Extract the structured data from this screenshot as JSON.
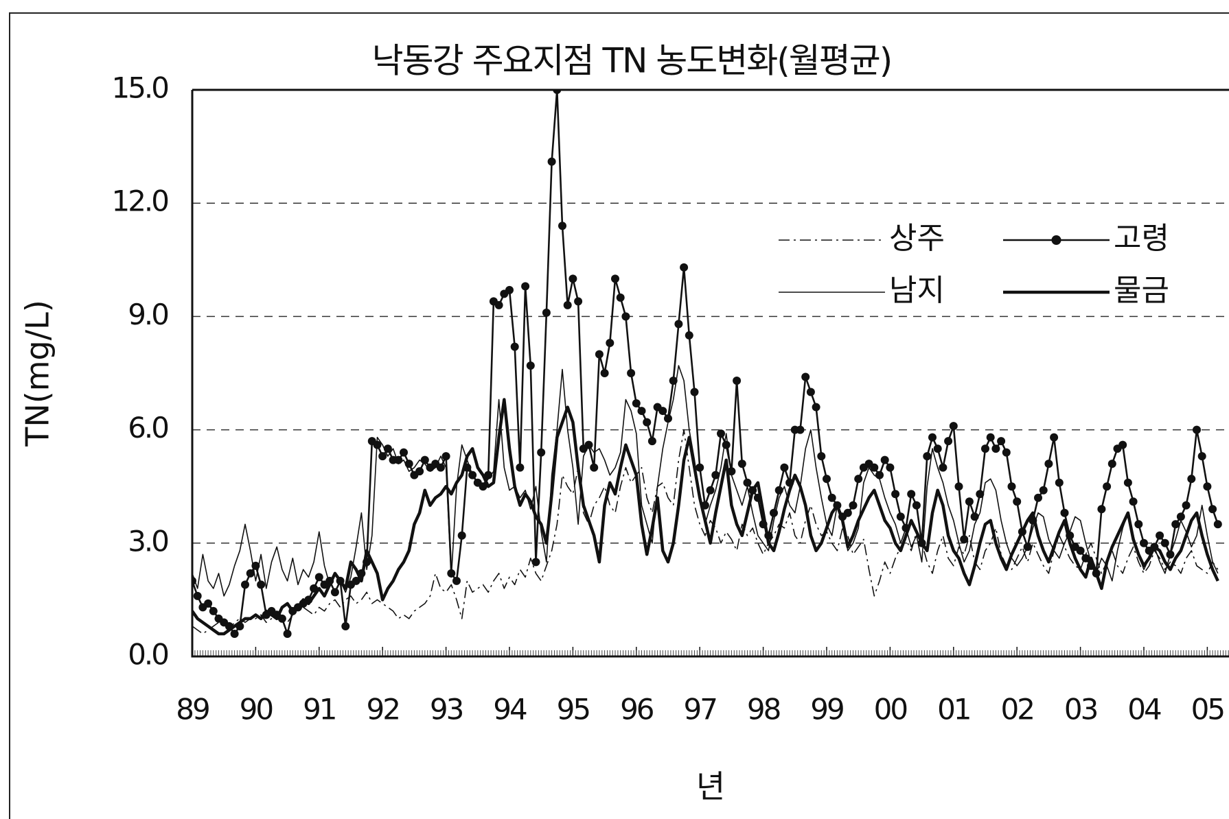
{
  "chart_data": {
    "type": "line",
    "title": "낙동강 주요지점 TN 농도변화(월평균)",
    "y_label": "TN(mg/L)",
    "x_label": "년",
    "x": [
      0,
      1,
      2,
      3,
      4,
      5,
      6,
      7,
      8,
      9,
      10,
      11,
      12,
      13,
      14,
      15,
      16,
      17,
      18,
      19,
      20,
      21,
      22,
      23,
      24,
      25,
      26,
      27,
      28,
      29,
      30,
      31,
      32,
      33,
      34,
      35,
      36,
      37,
      38,
      39,
      40,
      41,
      42,
      43,
      44,
      45,
      46,
      47,
      48,
      49,
      50,
      51,
      52,
      53,
      54,
      55,
      56,
      57,
      58,
      59,
      60,
      61,
      62,
      63,
      64,
      65,
      66,
      67,
      68,
      69,
      70,
      71,
      72,
      73,
      74,
      75,
      76,
      77,
      78,
      79,
      80,
      81,
      82,
      83,
      84,
      85,
      86,
      87,
      88,
      89,
      90,
      91,
      92,
      93,
      94,
      95,
      96,
      97,
      98,
      99,
      100,
      101,
      102,
      103,
      104,
      105,
      106,
      107,
      108,
      109,
      110,
      111,
      112,
      113,
      114,
      115,
      116,
      117,
      118,
      119,
      120,
      121,
      122,
      123,
      124,
      125,
      126,
      127,
      128,
      129,
      130,
      131,
      132,
      133,
      134,
      135,
      136,
      137,
      138,
      139,
      140,
      141,
      142,
      143,
      144,
      145,
      146,
      147,
      148,
      149,
      150,
      151,
      152,
      153,
      154,
      155,
      156,
      157,
      158,
      159,
      160,
      161,
      162,
      163,
      164,
      165,
      166,
      167,
      168,
      169,
      170,
      171,
      172,
      173,
      174,
      175,
      176,
      177,
      178,
      179,
      180,
      181,
      182,
      183,
      184,
      185,
      186,
      187,
      188,
      189,
      190,
      191,
      192,
      193,
      194
    ],
    "xlim": [
      0,
      197
    ],
    "xticks": [
      {
        "value": 0,
        "label": "89"
      },
      {
        "value": 12,
        "label": "90"
      },
      {
        "value": 24,
        "label": "91"
      },
      {
        "value": 36,
        "label": "92"
      },
      {
        "value": 48,
        "label": "93"
      },
      {
        "value": 60,
        "label": "94"
      },
      {
        "value": 72,
        "label": "95"
      },
      {
        "value": 84,
        "label": "96"
      },
      {
        "value": 96,
        "label": "97"
      },
      {
        "value": 108,
        "label": "98"
      },
      {
        "value": 120,
        "label": "99"
      },
      {
        "value": 132,
        "label": "00"
      },
      {
        "value": 144,
        "label": "01"
      },
      {
        "value": 156,
        "label": "02"
      },
      {
        "value": 168,
        "label": "03"
      },
      {
        "value": 180,
        "label": "04"
      },
      {
        "value": 192,
        "label": "05"
      }
    ],
    "ylim": [
      0,
      15
    ],
    "yticks": [
      {
        "value": 0,
        "label": "0.0"
      },
      {
        "value": 3,
        "label": "3.0"
      },
      {
        "value": 6,
        "label": "6.0"
      },
      {
        "value": 9,
        "label": "9.0"
      },
      {
        "value": 12,
        "label": "12.0"
      },
      {
        "value": 15,
        "label": "15.0"
      }
    ],
    "grid": true,
    "legend": "upper right",
    "series": [
      {
        "name": "상주",
        "color": "#111111",
        "style": "dashdot",
        "width": 1.6,
        "markers": false,
        "values": [
          0.8,
          0.7,
          0.6,
          0.7,
          0.8,
          0.9,
          0.8,
          0.7,
          0.9,
          1.0,
          0.9,
          1.0,
          1.0,
          1.1,
          0.9,
          1.0,
          1.2,
          1.0,
          0.9,
          1.1,
          1.2,
          1.3,
          1.2,
          1.1,
          1.3,
          1.2,
          1.4,
          1.5,
          1.3,
          1.5,
          1.6,
          1.4,
          1.5,
          1.7,
          1.4,
          1.5,
          1.4,
          1.3,
          1.2,
          1.0,
          1.1,
          1.0,
          1.2,
          1.3,
          1.4,
          1.6,
          2.2,
          1.8,
          1.7,
          1.9,
          1.5,
          1.0,
          2.0,
          1.7,
          1.8,
          1.9,
          1.7,
          2.0,
          2.2,
          1.8,
          2.1,
          1.9,
          2.3,
          2.1,
          2.6,
          2.2,
          2.0,
          2.4,
          2.8,
          3.5,
          4.8,
          4.5,
          4.3,
          5.0,
          3.8,
          3.5,
          4.0,
          4.2,
          4.5,
          4.0,
          3.8,
          4.5,
          5.0,
          4.6,
          4.8,
          5.0,
          4.2,
          3.8,
          4.5,
          4.6,
          4.2,
          4.0,
          5.2,
          6.0,
          5.0,
          4.0,
          3.5,
          3.2,
          3.6,
          3.4,
          3.0,
          3.3,
          3.1,
          2.8,
          3.5,
          3.2,
          3.4,
          3.0,
          2.7,
          3.0,
          3.2,
          3.5,
          3.4,
          3.8,
          3.2,
          3.0,
          3.6,
          4.0,
          3.5,
          3.2,
          3.3,
          3.0,
          2.8,
          3.4,
          3.2,
          2.7,
          2.9,
          3.1,
          2.3,
          1.6,
          2.0,
          2.5,
          2.2,
          2.6,
          2.9,
          3.1,
          2.8,
          3.3,
          3.0,
          2.5,
          2.2,
          2.8,
          3.2,
          2.6,
          2.4,
          2.9,
          2.7,
          3.2,
          2.5,
          2.3,
          2.8,
          3.0,
          3.4,
          2.7,
          2.4,
          2.3,
          2.6,
          2.9,
          2.5,
          3.0,
          2.7,
          2.4,
          2.2,
          2.8,
          3.2,
          2.9,
          2.6,
          2.4,
          2.3,
          2.7,
          3.0,
          2.6,
          2.2,
          2.5,
          2.8,
          2.4,
          2.2,
          2.6,
          2.9,
          2.5,
          2.2,
          2.4,
          2.8,
          2.6,
          2.3,
          2.5,
          2.4,
          2.2,
          2.6,
          2.8,
          2.4,
          2.3,
          2.2,
          2.5,
          2.3
        ]
      },
      {
        "name": "고령",
        "color": "#111111",
        "style": "solid",
        "width": 2.6,
        "markers": true,
        "values": [
          2.0,
          1.6,
          1.3,
          1.4,
          1.2,
          1.0,
          0.9,
          0.8,
          0.6,
          0.8,
          1.9,
          2.2,
          2.4,
          1.9,
          1.1,
          1.2,
          1.1,
          1.0,
          0.6,
          1.2,
          1.3,
          1.4,
          1.5,
          1.8,
          2.1,
          1.9,
          2.0,
          1.7,
          2.0,
          0.8,
          1.9,
          2.0,
          2.2,
          2.5,
          5.7,
          5.6,
          5.3,
          5.5,
          5.2,
          5.2,
          5.4,
          5.1,
          4.8,
          4.9,
          5.2,
          5.0,
          5.1,
          5.0,
          5.3,
          2.2,
          2.0,
          3.2,
          5.0,
          4.8,
          4.6,
          4.5,
          4.8,
          9.4,
          9.3,
          9.6,
          9.7,
          8.2,
          5.0,
          9.8,
          7.7,
          2.5,
          5.4,
          9.1,
          13.1,
          15.0,
          11.4,
          9.3,
          10.0,
          9.4,
          5.5,
          5.6,
          5.0,
          8.0,
          7.5,
          8.3,
          10.0,
          9.5,
          9.0,
          7.5,
          6.7,
          6.5,
          6.2,
          5.7,
          6.6,
          6.5,
          6.3,
          7.3,
          8.8,
          10.3,
          8.5,
          7.0,
          5.0,
          4.0,
          4.4,
          4.8,
          5.9,
          5.6,
          4.9,
          7.3,
          5.1,
          4.6,
          4.4,
          4.2,
          3.5,
          3.2,
          3.8,
          4.4,
          5.0,
          4.6,
          6.0,
          6.0,
          7.4,
          7.0,
          6.6,
          5.3,
          4.7,
          4.2,
          4.0,
          3.7,
          3.8,
          4.0,
          4.7,
          5.0,
          5.1,
          5.0,
          4.8,
          5.2,
          5.0,
          4.3,
          3.7,
          3.4,
          4.3,
          4.0,
          3.0,
          5.3,
          5.8,
          5.5,
          5.0,
          5.7,
          6.1,
          4.5,
          3.1,
          4.1,
          3.7,
          4.3,
          5.5,
          5.8,
          5.5,
          5.7,
          5.4,
          4.5,
          4.1,
          3.3,
          2.9,
          3.6,
          4.2,
          4.4,
          5.1,
          5.8,
          4.6,
          3.8,
          3.2,
          2.9,
          2.8,
          2.6,
          2.4,
          2.2,
          3.9,
          4.5,
          5.1,
          5.5,
          5.6,
          4.6,
          4.1,
          3.5,
          3.0,
          2.8,
          2.9,
          3.2,
          3.0,
          2.7,
          3.5,
          3.7,
          4.0,
          4.7,
          6.0,
          5.3,
          4.5,
          3.9,
          3.5
        ]
      },
      {
        "name": "남지",
        "color": "#111111",
        "style": "solid",
        "width": 1.6,
        "markers": false,
        "values": [
          2.2,
          1.8,
          2.7,
          2.0,
          1.8,
          2.2,
          1.6,
          1.9,
          2.4,
          2.8,
          3.5,
          2.8,
          2.0,
          2.7,
          1.8,
          2.5,
          2.9,
          2.3,
          2.0,
          2.6,
          1.9,
          2.3,
          2.1,
          2.5,
          3.3,
          2.4,
          1.9,
          2.2,
          2.0,
          1.7,
          2.1,
          2.9,
          3.8,
          2.3,
          3.2,
          5.8,
          5.6,
          5.3,
          5.5,
          5.1,
          5.2,
          4.9,
          5.0,
          5.2,
          5.1,
          4.9,
          5.0,
          5.3,
          5.0,
          2.1,
          4.5,
          5.6,
          5.2,
          4.8,
          4.6,
          4.5,
          4.7,
          4.9,
          6.8,
          5.0,
          4.4,
          4.5,
          4.2,
          4.4,
          3.9,
          4.5,
          3.3,
          2.5,
          4.8,
          6.0,
          7.6,
          6.0,
          5.0,
          3.5,
          5.3,
          5.6,
          5.4,
          5.5,
          5.2,
          4.8,
          5.0,
          5.4,
          6.8,
          6.5,
          5.9,
          4.0,
          3.5,
          3.0,
          4.5,
          5.5,
          6.2,
          6.8,
          7.7,
          7.3,
          6.0,
          5.2,
          4.2,
          3.5,
          4.0,
          4.4,
          5.0,
          5.9,
          4.8,
          4.4,
          4.0,
          4.5,
          3.8,
          3.2,
          3.0,
          2.8,
          3.6,
          4.2,
          4.5,
          4.0,
          3.8,
          4.5,
          5.5,
          6.0,
          5.0,
          4.2,
          3.5,
          3.2,
          4.0,
          3.6,
          2.8,
          3.0,
          3.4,
          4.6,
          5.0,
          4.8,
          4.7,
          4.2,
          3.8,
          3.5,
          3.0,
          3.4,
          2.9,
          3.2,
          2.5,
          4.5,
          5.5,
          5.0,
          4.6,
          4.0,
          3.6,
          3.0,
          2.5,
          2.8,
          3.5,
          3.8,
          4.6,
          4.7,
          4.4,
          3.6,
          3.0,
          2.6,
          2.4,
          2.6,
          2.9,
          3.4,
          3.8,
          3.7,
          3.1,
          2.8,
          2.6,
          3.0,
          3.3,
          3.7,
          3.6,
          3.0,
          2.5,
          2.2,
          2.6,
          2.4,
          2.0,
          2.8,
          3.4,
          3.8,
          3.2,
          2.7,
          2.3,
          2.6,
          2.9,
          2.5,
          2.2,
          2.7,
          3.1,
          3.6,
          3.3,
          2.9,
          3.2,
          4.0,
          3.2,
          2.5,
          2.2
        ]
      },
      {
        "name": "물금",
        "color": "#111111",
        "style": "solid",
        "width": 4.5,
        "markers": false,
        "values": [
          1.2,
          1.0,
          0.9,
          0.8,
          0.7,
          0.6,
          0.6,
          0.7,
          0.8,
          0.9,
          1.0,
          1.0,
          1.1,
          1.0,
          1.2,
          1.1,
          1.0,
          1.3,
          1.4,
          1.2,
          1.3,
          1.5,
          1.4,
          1.6,
          1.8,
          1.6,
          1.9,
          2.2,
          2.0,
          1.8,
          2.5,
          2.3,
          2.0,
          2.8,
          2.5,
          2.2,
          1.5,
          1.8,
          2.0,
          2.3,
          2.5,
          2.8,
          3.5,
          3.8,
          4.4,
          4.0,
          4.2,
          4.3,
          4.5,
          4.3,
          4.6,
          4.8,
          5.3,
          5.5,
          5.0,
          4.8,
          4.5,
          4.6,
          5.8,
          6.8,
          5.5,
          4.5,
          4.0,
          4.3,
          4.1,
          3.7,
          3.5,
          3.0,
          4.3,
          5.8,
          6.2,
          6.6,
          6.2,
          5.0,
          4.0,
          3.6,
          3.2,
          2.5,
          4.0,
          4.6,
          4.3,
          5.0,
          5.6,
          5.2,
          4.8,
          3.5,
          2.7,
          3.4,
          4.2,
          2.8,
          2.5,
          3.0,
          4.0,
          5.2,
          5.8,
          5.0,
          4.2,
          3.6,
          3.0,
          3.8,
          4.5,
          5.2,
          4.0,
          3.5,
          3.2,
          3.8,
          4.4,
          4.6,
          3.8,
          3.0,
          2.8,
          3.3,
          3.9,
          4.4,
          4.8,
          4.5,
          4.0,
          3.2,
          2.8,
          3.0,
          3.4,
          3.8,
          4.0,
          3.6,
          2.9,
          3.2,
          3.6,
          3.9,
          4.2,
          4.4,
          4.0,
          3.6,
          3.4,
          3.0,
          2.8,
          3.2,
          3.6,
          3.3,
          3.0,
          2.8,
          3.8,
          4.4,
          4.0,
          3.2,
          2.8,
          2.6,
          2.2,
          1.9,
          2.4,
          3.0,
          3.5,
          3.6,
          3.0,
          2.6,
          2.3,
          2.7,
          3.0,
          3.3,
          3.6,
          3.8,
          3.2,
          2.8,
          2.5,
          2.9,
          3.3,
          3.6,
          3.0,
          2.6,
          2.3,
          2.1,
          2.6,
          2.2,
          1.8,
          2.5,
          2.9,
          3.2,
          3.5,
          3.8,
          3.1,
          2.7,
          2.4,
          2.6,
          2.9,
          2.8,
          2.5,
          2.3,
          2.6,
          2.8,
          3.2,
          3.6,
          3.8,
          3.2,
          2.7,
          2.3,
          2.0
        ]
      }
    ]
  }
}
